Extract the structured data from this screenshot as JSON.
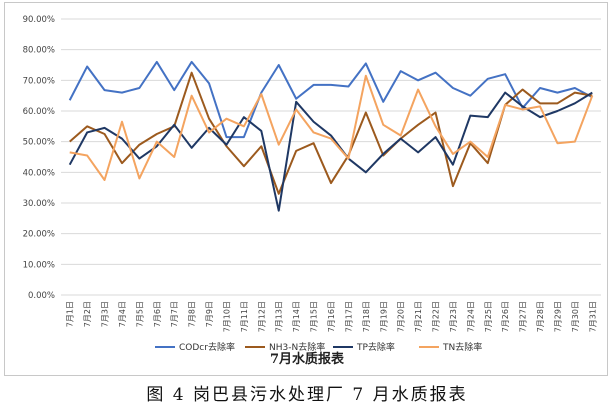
{
  "figure_caption": "图 4   岗巴县污水处理厂 7 月水质报表",
  "chart_data": {
    "type": "line",
    "title": "7月水质报表",
    "xlabel": "",
    "ylabel": "",
    "ylim": [
      0,
      90
    ],
    "y_ticks": [
      "0.00%",
      "10.00%",
      "20.00%",
      "30.00%",
      "40.00%",
      "50.00%",
      "60.00%",
      "70.00%",
      "80.00%",
      "90.00%"
    ],
    "grid": true,
    "legend_position": "bottom",
    "categories": [
      "7月1日",
      "7月2日",
      "7月3日",
      "7月4日",
      "7月5日",
      "7月6日",
      "7月7日",
      "7月8日",
      "7月9日",
      "7月10日",
      "7月11日",
      "7月12日",
      "7月13日",
      "7月14日",
      "7月15日",
      "7月16日",
      "7月17日",
      "7月18日",
      "7月19日",
      "7月20日",
      "7月21日",
      "7月22日",
      "7月23日",
      "7月24日",
      "7月25日",
      "7月26日",
      "7月27日",
      "7月28日",
      "7月29日",
      "7月30日",
      "7月31日"
    ],
    "series": [
      {
        "name": "CODcr去除率",
        "color": "#4472c4",
        "values": [
          63.5,
          74.5,
          66.8,
          66.0,
          67.5,
          76.0,
          66.8,
          76.0,
          69.0,
          51.5,
          51.5,
          66.0,
          75.0,
          64.0,
          68.5,
          68.5,
          68.0,
          75.5,
          63.0,
          73.0,
          70.0,
          72.5,
          67.5,
          65.0,
          70.5,
          72.0,
          61.0,
          67.5,
          66.0,
          67.5,
          64.5
        ]
      },
      {
        "name": "NH3-N去除率",
        "color": "#9c5a1e",
        "values": [
          50.0,
          55.0,
          52.5,
          43.0,
          49.0,
          52.5,
          55.0,
          72.5,
          57.5,
          48.5,
          42.0,
          48.5,
          33.0,
          47.0,
          49.5,
          36.5,
          45.5,
          59.5,
          45.5,
          51.0,
          55.5,
          59.5,
          35.5,
          49.5,
          43.0,
          62.0,
          67.0,
          62.5,
          62.5,
          66.0,
          65.0
        ]
      },
      {
        "name": "TP去除率",
        "color": "#1f3864",
        "values": [
          42.5,
          53.0,
          54.5,
          51.0,
          44.5,
          48.5,
          55.5,
          48.0,
          54.5,
          49.0,
          58.0,
          53.5,
          27.5,
          63.0,
          56.5,
          52.0,
          44.5,
          40.0,
          46.0,
          51.0,
          46.5,
          51.5,
          42.5,
          58.5,
          58.0,
          66.0,
          61.5,
          58.0,
          60.0,
          62.5,
          66.0
        ]
      },
      {
        "name": "TN去除率",
        "color": "#f4a460",
        "values": [
          46.5,
          45.5,
          37.5,
          56.5,
          38.0,
          50.0,
          45.0,
          65.0,
          53.0,
          57.5,
          55.0,
          65.5,
          49.0,
          60.5,
          53.0,
          51.0,
          44.5,
          71.5,
          55.5,
          52.0,
          67.0,
          55.0,
          46.0,
          50.0,
          45.0,
          62.0,
          60.5,
          61.5,
          49.5,
          50.0,
          65.0
        ]
      }
    ]
  }
}
